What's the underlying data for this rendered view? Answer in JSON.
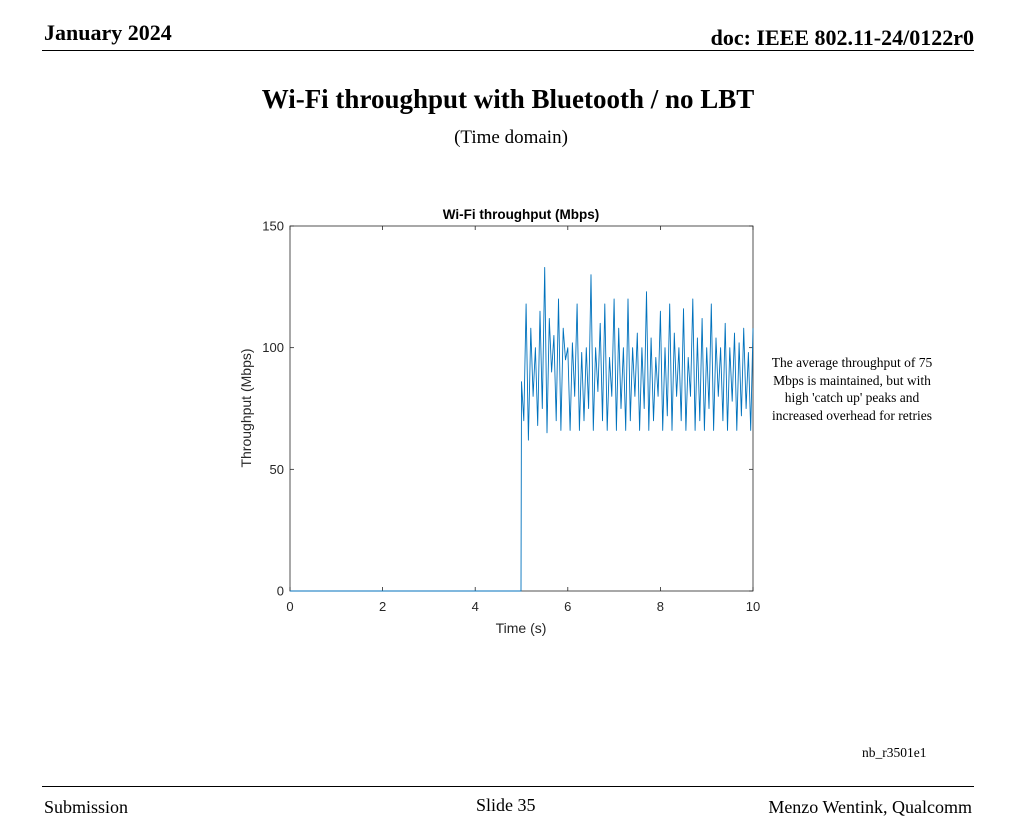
{
  "header": {
    "date": "January 2024",
    "doc": "doc: IEEE 802.11-24/0122r0"
  },
  "slide": {
    "title": "Wi-Fi throughput with Bluetooth / no LBT",
    "subtitle": "(Time domain)",
    "annotation": "The average throughput of 75 Mbps is maintained, but with high 'catch up' peaks and increased overhead for retries",
    "doc_id": "nb_r3501e1"
  },
  "footer": {
    "left": "Submission",
    "center": "Slide 35",
    "right": "Menzo Wentink, Qualcomm"
  },
  "colors": {
    "series": "#0072BD",
    "axis": "#262626"
  },
  "chart_data": {
    "type": "line",
    "title": "Wi-Fi throughput (Mbps)",
    "xlabel": "Time (s)",
    "ylabel": "Throughput (Mbps)",
    "xlim": [
      0,
      10
    ],
    "ylim": [
      0,
      150
    ],
    "xticks": [
      0,
      2,
      4,
      6,
      8,
      10
    ],
    "yticks": [
      0,
      50,
      100,
      150
    ],
    "grid": false,
    "series": [
      {
        "x": [
          0,
          1,
          2,
          3,
          4,
          4.99,
          5.0,
          5.05,
          5.1,
          5.15,
          5.2,
          5.25,
          5.3,
          5.35,
          5.4,
          5.45,
          5.5,
          5.55,
          5.6,
          5.65,
          5.7,
          5.75,
          5.8,
          5.85,
          5.9,
          5.95,
          6.0,
          6.05,
          6.1,
          6.15,
          6.2,
          6.25,
          6.3,
          6.35,
          6.4,
          6.45,
          6.5,
          6.55,
          6.6,
          6.65,
          6.7,
          6.75,
          6.8,
          6.85,
          6.9,
          6.95,
          7.0,
          7.05,
          7.1,
          7.15,
          7.2,
          7.25,
          7.3,
          7.35,
          7.4,
          7.45,
          7.5,
          7.55,
          7.6,
          7.65,
          7.7,
          7.75,
          7.8,
          7.85,
          7.9,
          7.95,
          8.0,
          8.05,
          8.1,
          8.15,
          8.2,
          8.25,
          8.3,
          8.35,
          8.4,
          8.45,
          8.5,
          8.55,
          8.6,
          8.65,
          8.7,
          8.75,
          8.8,
          8.85,
          8.9,
          8.95,
          9.0,
          9.05,
          9.1,
          9.15,
          9.2,
          9.25,
          9.3,
          9.35,
          9.4,
          9.45,
          9.5,
          9.55,
          9.6,
          9.65,
          9.7,
          9.75,
          9.8,
          9.85,
          9.9,
          9.95,
          10.0
        ],
        "y": [
          0,
          0,
          0,
          0,
          0,
          0,
          86,
          70,
          118,
          62,
          108,
          80,
          100,
          68,
          115,
          75,
          133,
          65,
          112,
          90,
          105,
          70,
          120,
          66,
          108,
          95,
          100,
          66,
          102,
          80,
          118,
          66,
          98,
          70,
          100,
          75,
          130,
          66,
          100,
          82,
          110,
          70,
          118,
          66,
          96,
          80,
          120,
          66,
          108,
          75,
          100,
          66,
          120,
          70,
          100,
          80,
          106,
          66,
          100,
          75,
          123,
          66,
          104,
          70,
          96,
          80,
          115,
          66,
          100,
          72,
          118,
          66,
          106,
          80,
          100,
          70,
          116,
          66,
          96,
          80,
          120,
          66,
          104,
          70,
          112,
          66,
          100,
          75,
          118,
          66,
          104,
          80,
          100,
          70,
          110,
          66,
          100,
          78,
          106,
          66,
          102,
          72,
          108,
          75,
          98,
          66,
          108
        ]
      }
    ]
  }
}
